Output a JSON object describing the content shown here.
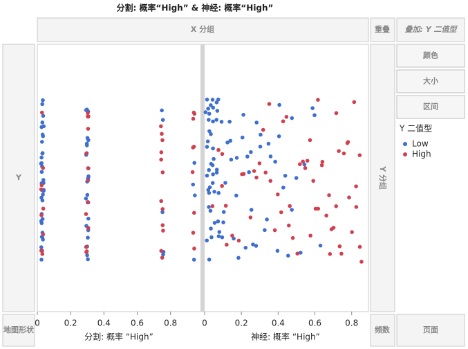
{
  "title": "分割: 概率“High” & 神经: 概率“High”",
  "zones": {
    "x_group": "X 分组",
    "overlap": "重叠",
    "overlay": "叠加: Y 二值型",
    "y": "Y",
    "y_group": "Y 分组",
    "map_shape": "地图形状",
    "freq": "频数",
    "page": "页面"
  },
  "buttons": [
    "颜色",
    "大小",
    "区间"
  ],
  "legend": {
    "title": "Y 二值型"
  },
  "chart_data": [
    {
      "type": "scatter",
      "x_label": "分割: 概率 “High”",
      "xlim": [
        0,
        0.98
      ],
      "xticks": [
        0,
        0.2,
        0.4,
        0.6,
        0.8
      ],
      "series": [
        {
          "name": "Low",
          "color": "#3e6fd0",
          "x": [
            0.03,
            0.03,
            0.03,
            0.03,
            0.03,
            0.03,
            0.03,
            0.03,
            0.03,
            0.03,
            0.03,
            0.03,
            0.03,
            0.03,
            0.03,
            0.03,
            0.03,
            0.03,
            0.03,
            0.03,
            0.03,
            0.03,
            0.03,
            0.03,
            0.03,
            0.03,
            0.03,
            0.03,
            0.03,
            0.03,
            0.03,
            0.03,
            0.03,
            0.03,
            0.03,
            0.03,
            0.3,
            0.3,
            0.3,
            0.3,
            0.3,
            0.3,
            0.3,
            0.3,
            0.3,
            0.3,
            0.3,
            0.3,
            0.3,
            0.3,
            0.3,
            0.3,
            0.3,
            0.3,
            0.3,
            0.3,
            0.3,
            0.3,
            0.3,
            0.3,
            0.3,
            0.3,
            0.75,
            0.75,
            0.75,
            0.75,
            0.75,
            0.94,
            0.94,
            0.94,
            0.94
          ]
        },
        {
          "name": "High",
          "color": "#d0404f",
          "x": [
            0.03,
            0.03,
            0.03,
            0.03,
            0.03,
            0.03,
            0.03,
            0.03,
            0.03,
            0.03,
            0.3,
            0.3,
            0.3,
            0.3,
            0.3,
            0.3,
            0.3,
            0.3,
            0.3,
            0.3,
            0.3,
            0.3,
            0.3,
            0.3,
            0.75,
            0.75,
            0.75,
            0.75,
            0.75,
            0.75,
            0.75,
            0.75,
            0.75,
            0.75,
            0.75,
            0.75,
            0.94,
            0.94,
            0.94,
            0.94,
            0.94,
            0.94,
            0.94,
            0.94,
            0.94
          ]
        }
      ]
    },
    {
      "type": "scatter",
      "x_label": "神经: 概率 “High”",
      "xlim": [
        0,
        0.88
      ],
      "xticks": [
        0,
        0.2,
        0.4,
        0.6,
        0.8
      ],
      "series": [
        {
          "color": "#3e6fd0",
          "x": [
            0.01,
            0.02,
            0.02,
            0.03,
            0.03,
            0.04,
            0.04,
            0.05,
            0.05,
            0.06,
            0.01,
            0.02,
            0.03,
            0.04,
            0.05,
            0.06,
            0.07,
            0.08,
            0.02,
            0.03,
            0.01,
            0.04,
            0.05,
            0.07,
            0.09,
            0.1,
            0.11,
            0.12,
            0.02,
            0.03,
            0.06,
            0.08,
            0.13,
            0.15,
            0.16,
            0.18,
            0.2,
            0.21,
            0.22,
            0.24,
            0.26,
            0.27,
            0.29,
            0.3,
            0.32,
            0.34,
            0.36,
            0.38,
            0.4,
            0.41,
            0.43,
            0.45,
            0.47,
            0.5,
            0.52,
            0.55,
            0.58,
            0.6,
            0.63,
            0.02,
            0.04,
            0.01,
            0.03,
            0.05,
            0.07,
            0.09,
            0.14,
            0.17,
            0.19,
            0.23,
            0.25,
            0.28,
            0.31,
            0.35,
            0.39,
            0.44,
            0.48,
            0.01,
            0.02,
            0.03,
            0.04,
            0.06,
            0.08,
            0.12,
            0.02,
            0.05
          ]
        },
        {
          "color": "#d0404f",
          "x": [
            0.05,
            0.08,
            0.1,
            0.12,
            0.15,
            0.18,
            0.2,
            0.22,
            0.25,
            0.28,
            0.3,
            0.33,
            0.35,
            0.38,
            0.4,
            0.42,
            0.44,
            0.46,
            0.48,
            0.5,
            0.52,
            0.54,
            0.56,
            0.58,
            0.6,
            0.62,
            0.64,
            0.66,
            0.68,
            0.7,
            0.72,
            0.74,
            0.76,
            0.78,
            0.8,
            0.82,
            0.84,
            0.85,
            0.86,
            0.64,
            0.67,
            0.71,
            0.75,
            0.79,
            0.83,
            0.57,
            0.61,
            0.69,
            0.73,
            0.77,
            0.36,
            0.41,
            0.47,
            0.53,
            0.27,
            0.32,
            0.12,
            0.09,
            0.59,
            0.81
          ]
        }
      ]
    }
  ]
}
